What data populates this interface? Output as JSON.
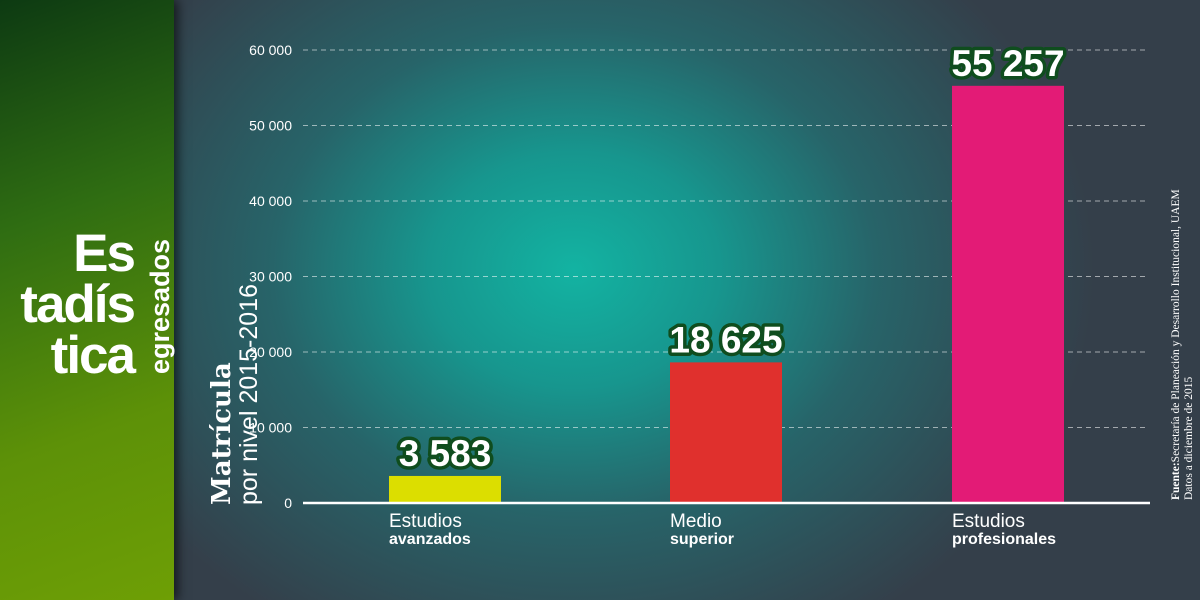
{
  "side_title": {
    "lines": [
      "Es",
      "tadís",
      "tica"
    ],
    "subtitle": "egresados"
  },
  "ylabel": {
    "line1": "Matrícula",
    "line2": "por nivel 2015-2016"
  },
  "source": {
    "prefix": "Fuente:",
    "text": "Secretaría de Planeación y Desarrollo Institucional, UAEM",
    "line2": "Datos a diciembre de 2015"
  },
  "chart_data": {
    "type": "bar",
    "categories": [
      {
        "line1": "Estudios",
        "line2": "avanzados"
      },
      {
        "line1": "Medio",
        "line2": "superior"
      },
      {
        "line1": "Estudios",
        "line2": "profesionales"
      }
    ],
    "values": [
      3583,
      18625,
      55257
    ],
    "value_labels": [
      "3 583",
      "18 625",
      "55 257"
    ],
    "colors": [
      "#dcde00",
      "#e0302d",
      "#e31b76"
    ],
    "yticks": [
      {
        "value": 0,
        "label": "0"
      },
      {
        "value": 10000,
        "label": "10 000"
      },
      {
        "value": 20000,
        "label": "20 000"
      },
      {
        "value": 30000,
        "label": "30 000"
      },
      {
        "value": 40000,
        "label": "40 000"
      },
      {
        "value": 50000,
        "label": "50 000"
      },
      {
        "value": 60000,
        "label": "60 000"
      }
    ],
    "ylim": [
      0,
      60000
    ],
    "grid": true,
    "legend": "none"
  }
}
